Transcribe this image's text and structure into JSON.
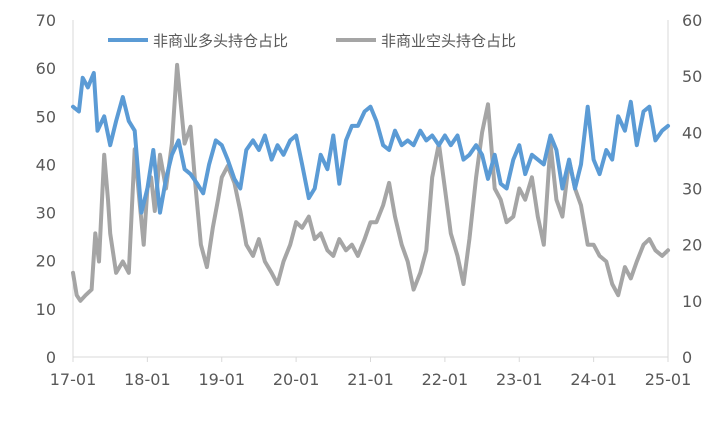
{
  "colors": {
    "series_long": "#5B9BD5",
    "series_short": "#A5A5A5",
    "axis": "#D9D9D9",
    "text": "#595959"
  },
  "chart_data": {
    "type": "line",
    "title": "",
    "grid": false,
    "legend_position": "top",
    "x_tick_labels": [
      "17-01",
      "18-01",
      "19-01",
      "20-01",
      "21-01",
      "22-01",
      "23-01",
      "24-01",
      "25-01"
    ],
    "x_range": [
      2017.0,
      2025.0
    ],
    "y_left": {
      "label": "",
      "range": [
        0,
        70
      ],
      "ticks": [
        0,
        10,
        20,
        30,
        40,
        50,
        60,
        70
      ]
    },
    "y_right": {
      "label": "",
      "range": [
        0,
        60
      ],
      "ticks": [
        0,
        10,
        20,
        30,
        40,
        50,
        60
      ]
    },
    "series": [
      {
        "name": "非商业多头持仓占比",
        "axis": "left",
        "color": "#5B9BD5",
        "x": [
          2017.0,
          2017.08,
          2017.13,
          2017.2,
          2017.28,
          2017.33,
          2017.42,
          2017.5,
          2017.58,
          2017.67,
          2017.75,
          2017.83,
          2017.92,
          2018.0,
          2018.08,
          2018.17,
          2018.25,
          2018.33,
          2018.42,
          2018.5,
          2018.58,
          2018.67,
          2018.75,
          2018.83,
          2018.92,
          2019.0,
          2019.08,
          2019.17,
          2019.25,
          2019.33,
          2019.42,
          2019.5,
          2019.58,
          2019.67,
          2019.75,
          2019.83,
          2019.92,
          2020.0,
          2020.08,
          2020.17,
          2020.25,
          2020.33,
          2020.42,
          2020.5,
          2020.58,
          2020.67,
          2020.75,
          2020.83,
          2020.92,
          2021.0,
          2021.08,
          2021.17,
          2021.25,
          2021.33,
          2021.42,
          2021.5,
          2021.58,
          2021.67,
          2021.75,
          2021.83,
          2021.92,
          2022.0,
          2022.08,
          2022.17,
          2022.25,
          2022.33,
          2022.42,
          2022.5,
          2022.58,
          2022.67,
          2022.75,
          2022.83,
          2022.92,
          2023.0,
          2023.08,
          2023.17,
          2023.25,
          2023.33,
          2023.42,
          2023.5,
          2023.58,
          2023.67,
          2023.75,
          2023.83,
          2023.92,
          2024.0,
          2024.08,
          2024.17,
          2024.25,
          2024.33,
          2024.42,
          2024.5,
          2024.58,
          2024.67,
          2024.75,
          2024.83,
          2024.92,
          2025.0
        ],
        "values": [
          52,
          51,
          58,
          56,
          59,
          47,
          50,
          44,
          49,
          54,
          49,
          47,
          30,
          35,
          43,
          30,
          37,
          42,
          45,
          39,
          38,
          36,
          34,
          40,
          45,
          44,
          41,
          37,
          35,
          43,
          45,
          43,
          46,
          41,
          44,
          42,
          45,
          46,
          40,
          33,
          35,
          42,
          39,
          46,
          36,
          45,
          48,
          48,
          51,
          52,
          49,
          44,
          43,
          47,
          44,
          45,
          44,
          47,
          45,
          46,
          44,
          46,
          44,
          46,
          41,
          42,
          44,
          42,
          37,
          42,
          36,
          35,
          41,
          44,
          38,
          42,
          41,
          40,
          46,
          43,
          35,
          41,
          35,
          40,
          52,
          41,
          38,
          43,
          41,
          50,
          47,
          53,
          44,
          51,
          52,
          45,
          47,
          48
        ]
      },
      {
        "name": "非商业空头持仓占比",
        "axis": "right",
        "color": "#A5A5A5",
        "x": [
          2017.0,
          2017.05,
          2017.1,
          2017.17,
          2017.25,
          2017.3,
          2017.35,
          2017.42,
          2017.47,
          2017.5,
          2017.58,
          2017.67,
          2017.75,
          2017.83,
          2017.9,
          2017.95,
          2018.0,
          2018.05,
          2018.1,
          2018.17,
          2018.25,
          2018.33,
          2018.4,
          2018.45,
          2018.5,
          2018.58,
          2018.65,
          2018.72,
          2018.8,
          2018.88,
          2018.95,
          2019.0,
          2019.08,
          2019.17,
          2019.25,
          2019.33,
          2019.42,
          2019.5,
          2019.58,
          2019.67,
          2019.75,
          2019.83,
          2019.92,
          2020.0,
          2020.08,
          2020.17,
          2020.25,
          2020.33,
          2020.42,
          2020.5,
          2020.58,
          2020.67,
          2020.75,
          2020.83,
          2020.92,
          2021.0,
          2021.08,
          2021.17,
          2021.25,
          2021.33,
          2021.42,
          2021.5,
          2021.58,
          2021.67,
          2021.75,
          2021.83,
          2021.92,
          2022.0,
          2022.08,
          2022.17,
          2022.25,
          2022.33,
          2022.42,
          2022.5,
          2022.58,
          2022.67,
          2022.75,
          2022.83,
          2022.92,
          2023.0,
          2023.08,
          2023.17,
          2023.25,
          2023.33,
          2023.42,
          2023.5,
          2023.58,
          2023.67,
          2023.75,
          2023.83,
          2023.92,
          2024.0,
          2024.08,
          2024.17,
          2024.25,
          2024.33,
          2024.42,
          2024.5,
          2024.58,
          2024.67,
          2024.75,
          2024.83,
          2024.92,
          2025.0
        ],
        "values": [
          15,
          11,
          10,
          11,
          12,
          22,
          17,
          36,
          28,
          22,
          15,
          17,
          15,
          37,
          27,
          20,
          30,
          32,
          26,
          36,
          30,
          38,
          52,
          45,
          38,
          41,
          30,
          20,
          16,
          23,
          28,
          32,
          34,
          31,
          26,
          20,
          18,
          21,
          17,
          15,
          13,
          17,
          20,
          24,
          23,
          25,
          21,
          22,
          19,
          18,
          21,
          19,
          20,
          18,
          21,
          24,
          24,
          27,
          31,
          25,
          20,
          17,
          12,
          15,
          19,
          32,
          38,
          30,
          22,
          18,
          13,
          21,
          32,
          40,
          45,
          30,
          28,
          24,
          25,
          30,
          28,
          32,
          25,
          20,
          38,
          28,
          25,
          35,
          30,
          27,
          20,
          20,
          18,
          17,
          13,
          11,
          16,
          14,
          17,
          20,
          21,
          19,
          18,
          19
        ]
      }
    ]
  }
}
